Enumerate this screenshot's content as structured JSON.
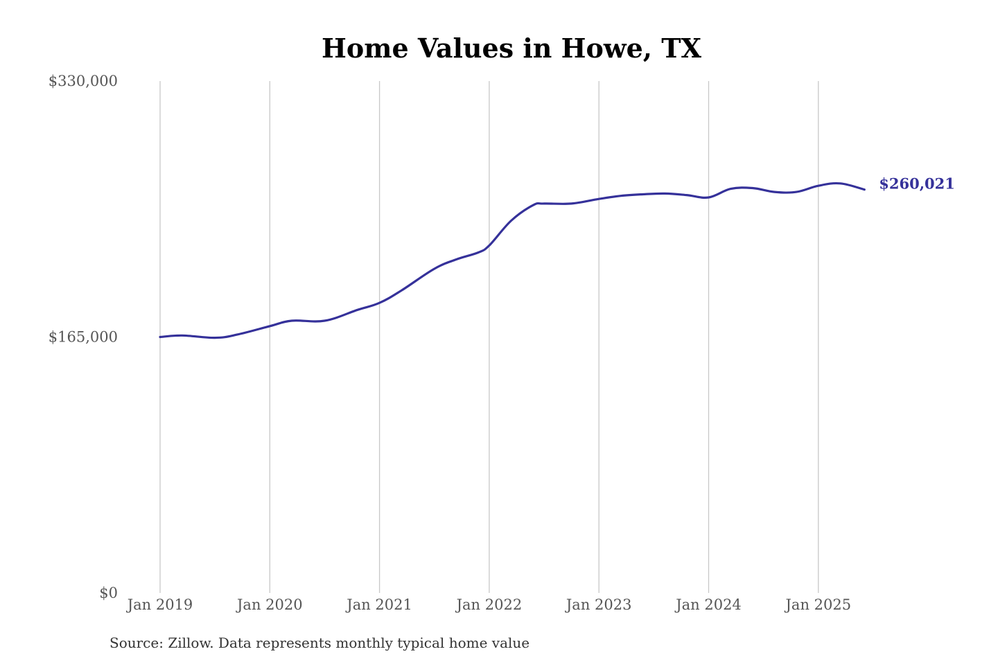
{
  "chart_data": {
    "type": "line",
    "title": "Home Values in Howe, TX",
    "xlabel": "",
    "ylabel": "",
    "ylim": [
      0,
      330000
    ],
    "yticks": [
      {
        "value": 0,
        "label": "$0"
      },
      {
        "value": 165000,
        "label": "$165,000"
      },
      {
        "value": 330000,
        "label": "$330,000"
      }
    ],
    "xticks": [
      {
        "value": 2019.0,
        "label": "Jan 2019"
      },
      {
        "value": 2020.0,
        "label": "Jan 2020"
      },
      {
        "value": 2021.0,
        "label": "Jan 2021"
      },
      {
        "value": 2022.0,
        "label": "Jan 2022"
      },
      {
        "value": 2023.0,
        "label": "Jan 2023"
      },
      {
        "value": 2024.0,
        "label": "Jan 2024"
      },
      {
        "value": 2025.0,
        "label": "Jan 2025"
      }
    ],
    "xlim": [
      2019.0,
      2025.42
    ],
    "grid": {
      "vertical": true,
      "horizontal": false
    },
    "series": [
      {
        "color": "#35319a",
        "end_label": "$260,021",
        "x": [
          2019.0,
          2019.2,
          2019.5,
          2019.7,
          2020.0,
          2020.2,
          2020.5,
          2020.8,
          2021.0,
          2021.2,
          2021.5,
          2021.7,
          2021.9,
          2022.0,
          2022.2,
          2022.4,
          2022.5,
          2022.75,
          2023.0,
          2023.2,
          2023.4,
          2023.6,
          2023.8,
          2024.0,
          2024.2,
          2024.4,
          2024.6,
          2024.8,
          2025.0,
          2025.2,
          2025.42
        ],
        "values": [
          165000,
          166000,
          164500,
          166500,
          172000,
          175500,
          175500,
          182500,
          187000,
          195000,
          209000,
          215000,
          219500,
          224000,
          240000,
          250000,
          251000,
          251000,
          254000,
          256000,
          257000,
          257500,
          256500,
          255000,
          260500,
          261000,
          258500,
          258500,
          262500,
          264000,
          260021
        ]
      }
    ]
  },
  "footer": {
    "source": "Source: Zillow. Data represents monthly typical home value"
  }
}
